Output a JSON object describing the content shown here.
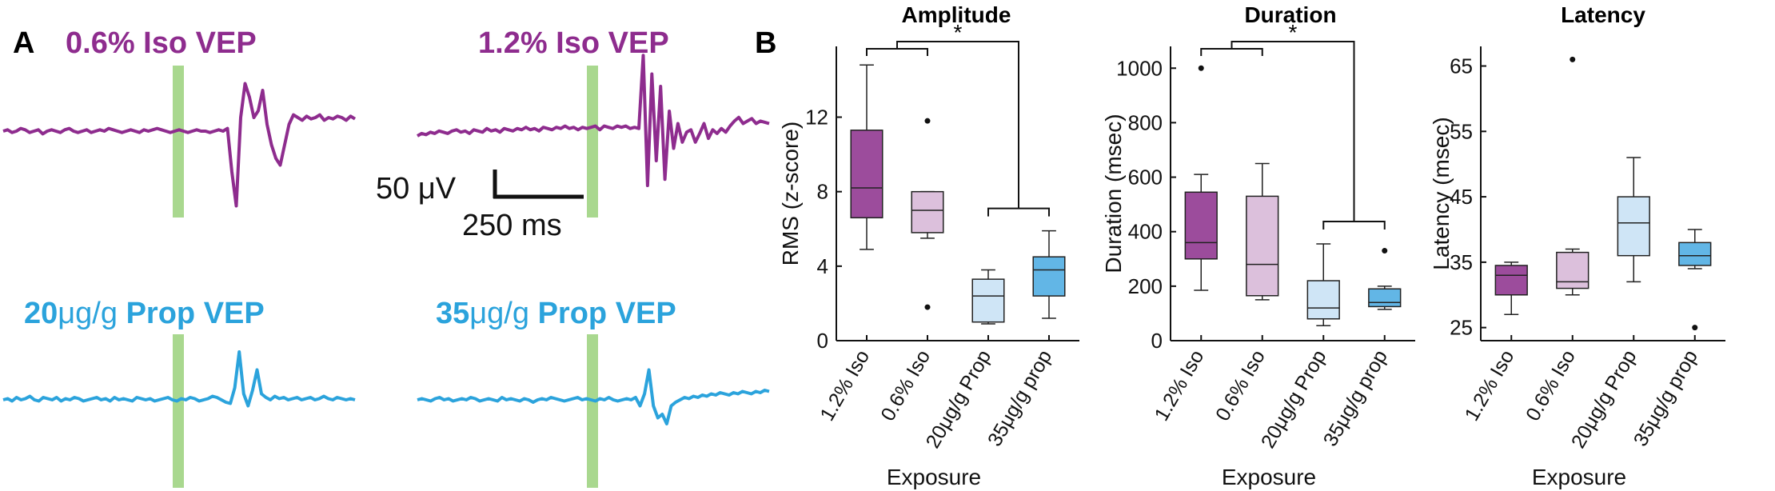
{
  "colors": {
    "iso_dark": "#9c4c9c",
    "iso_light": "#dcc0dc",
    "prop_light": "#cfe5f6",
    "prop_dark": "#62b6e6",
    "trace_iso": "#8e2c8e",
    "trace_prop": "#2ba3dc",
    "stim_bar": "#a9d88f"
  },
  "panel_a": {
    "label": "A",
    "traces": [
      {
        "title_value": "0.6%",
        "title_rest": " Iso VEP",
        "color": "#8e2c8e",
        "signal": [
          0,
          1,
          -1,
          0,
          2,
          1,
          -1,
          0,
          1,
          -2,
          0,
          1,
          0,
          -1,
          1,
          2,
          0,
          -1,
          0,
          1,
          -1,
          0,
          1,
          0,
          2,
          1,
          0,
          -1,
          0,
          1,
          0,
          -1,
          1,
          0,
          1,
          2,
          1,
          0,
          -1,
          0,
          1,
          0,
          -1,
          0,
          1,
          0,
          0,
          -1,
          0,
          1,
          0,
          2,
          -30,
          -55,
          10,
          35,
          25,
          10,
          15,
          30,
          5,
          -10,
          -20,
          -25,
          -10,
          5,
          12,
          10,
          8,
          11,
          9,
          10,
          12,
          8,
          10,
          9,
          11,
          10,
          8,
          11,
          9
        ]
      },
      {
        "title_value": "1.2%",
        "title_rest": " Iso VEP",
        "color": "#8e2c8e",
        "signal": [
          0,
          2,
          1,
          3,
          2,
          4,
          3,
          2,
          4,
          5,
          3,
          4,
          2,
          5,
          4,
          3,
          6,
          4,
          5,
          3,
          6,
          5,
          4,
          6,
          5,
          7,
          5,
          6,
          4,
          7,
          6,
          5,
          7,
          6,
          8,
          6,
          7,
          5,
          7,
          6,
          7,
          8,
          5,
          8,
          7,
          6,
          8,
          7,
          8,
          6,
          7,
          6,
          65,
          -40,
          50,
          -20,
          40,
          -35,
          20,
          -10,
          10,
          -5,
          3,
          5,
          -5,
          2,
          10,
          -2,
          5,
          2,
          6,
          3,
          8,
          12,
          15,
          10,
          12,
          14,
          10,
          12,
          11,
          10
        ]
      },
      {
        "title_value": "20",
        "title_unit": "μg/g",
        "title_rest": " Prop VEP",
        "color": "#2ba3dc",
        "signal": [
          0,
          1,
          -1,
          2,
          0,
          1,
          3,
          0,
          -1,
          2,
          1,
          0,
          2,
          -1,
          1,
          0,
          2,
          1,
          -1,
          0,
          1,
          2,
          0,
          1,
          -1,
          2,
          0,
          1,
          0,
          -1,
          2,
          1,
          0,
          1,
          -1,
          0,
          1,
          2,
          0,
          -1,
          1,
          0,
          2,
          1,
          -1,
          0,
          1,
          3,
          2,
          0,
          -2,
          -3,
          10,
          40,
          5,
          -5,
          8,
          25,
          5,
          2,
          0,
          3,
          1,
          2,
          0,
          1,
          2,
          0,
          1,
          2,
          0,
          1,
          3,
          1,
          0,
          2,
          1,
          0,
          1,
          0
        ]
      },
      {
        "title_value": "35",
        "title_unit": "μg/g",
        "title_rest": " Prop VEP",
        "color": "#2ba3dc",
        "signal": [
          0,
          1,
          0,
          -1,
          1,
          2,
          0,
          1,
          -1,
          0,
          1,
          0,
          2,
          1,
          -1,
          0,
          1,
          0,
          -1,
          2,
          0,
          1,
          0,
          -1,
          1,
          0,
          -2,
          0,
          1,
          0,
          2,
          1,
          0,
          -1,
          0,
          1,
          2,
          0,
          1,
          0,
          -1,
          1,
          0,
          2,
          0,
          -1,
          0,
          1,
          0,
          2,
          -5,
          5,
          25,
          -5,
          -15,
          -12,
          -20,
          -5,
          -2,
          0,
          2,
          1,
          3,
          2,
          4,
          3,
          5,
          4,
          6,
          5,
          4,
          6,
          5,
          7,
          6,
          5,
          7,
          6,
          8,
          7
        ]
      }
    ],
    "scale_bar": {
      "amplitude_label": "50 μV",
      "time_label": "250 ms"
    }
  },
  "panel_b": {
    "label": "B",
    "x_label": "Exposure",
    "categories": [
      "1.2% Iso",
      "0.6% Iso",
      "20μg/g Prop",
      "35μg/g prop"
    ]
  },
  "chart_data": [
    {
      "type": "box",
      "title": "Amplitude",
      "ylabel": "RMS (z-score)",
      "xlabel": "Exposure",
      "ylim": [
        0,
        15.8
      ],
      "yticks": [
        0,
        4,
        8,
        12
      ],
      "categories": [
        "1.2% Iso",
        "0.6% Iso",
        "20μg/g Prop",
        "35μg/g prop"
      ],
      "boxes": [
        {
          "whisker_low": 4.9,
          "q1": 6.6,
          "median": 8.2,
          "q3": 11.3,
          "whisker_high": 14.8,
          "outliers": []
        },
        {
          "whisker_low": 5.5,
          "q1": 5.8,
          "median": 7.0,
          "q3": 8.0,
          "whisker_high": 8.0,
          "outliers": [
            11.8,
            1.8
          ]
        },
        {
          "whisker_low": 0.9,
          "q1": 1.0,
          "median": 2.4,
          "q3": 3.3,
          "whisker_high": 3.8,
          "outliers": []
        },
        {
          "whisker_low": 1.2,
          "q1": 2.4,
          "median": 3.8,
          "q3": 4.5,
          "whisker_high": 5.9,
          "outliers": []
        }
      ],
      "significance": {
        "label": "*",
        "left_group": [
          0,
          1
        ],
        "right_group": [
          2,
          3
        ]
      }
    },
    {
      "type": "box",
      "title": "Duration",
      "ylabel": "Duration (msec)",
      "xlabel": "Exposure",
      "ylim": [
        0,
        1080
      ],
      "yticks": [
        0,
        200,
        400,
        600,
        800,
        1000
      ],
      "categories": [
        "1.2% Iso",
        "0.6% Iso",
        "20μg/g Prop",
        "35μg/g prop"
      ],
      "boxes": [
        {
          "whisker_low": 185,
          "q1": 300,
          "median": 360,
          "q3": 545,
          "whisker_high": 610,
          "outliers": [
            1000
          ]
        },
        {
          "whisker_low": 150,
          "q1": 165,
          "median": 280,
          "q3": 530,
          "whisker_high": 650,
          "outliers": []
        },
        {
          "whisker_low": 55,
          "q1": 80,
          "median": 120,
          "q3": 220,
          "whisker_high": 355,
          "outliers": []
        },
        {
          "whisker_low": 115,
          "q1": 125,
          "median": 140,
          "q3": 190,
          "whisker_high": 200,
          "outliers": [
            330
          ]
        }
      ],
      "significance": {
        "label": "*",
        "left_group": [
          0,
          1
        ],
        "right_group": [
          2,
          3
        ]
      }
    },
    {
      "type": "box",
      "title": "Latency",
      "ylabel": "Latency (msec)",
      "xlabel": "Exposure",
      "ylim": [
        23,
        68
      ],
      "yticks": [
        25,
        35,
        45,
        55,
        65
      ],
      "categories": [
        "1.2% Iso",
        "0.6% Iso",
        "20μg/g Prop",
        "35μg/g prop"
      ],
      "boxes": [
        {
          "whisker_low": 27,
          "q1": 30,
          "median": 33,
          "q3": 34.5,
          "whisker_high": 35,
          "outliers": []
        },
        {
          "whisker_low": 30,
          "q1": 31,
          "median": 32,
          "q3": 36.5,
          "whisker_high": 37,
          "outliers": [
            66
          ]
        },
        {
          "whisker_low": 32,
          "q1": 36,
          "median": 41,
          "q3": 45,
          "whisker_high": 51,
          "outliers": []
        },
        {
          "whisker_low": 34,
          "q1": 34.5,
          "median": 36,
          "q3": 38,
          "whisker_high": 40,
          "outliers": [
            25
          ]
        }
      ],
      "significance": null
    }
  ]
}
